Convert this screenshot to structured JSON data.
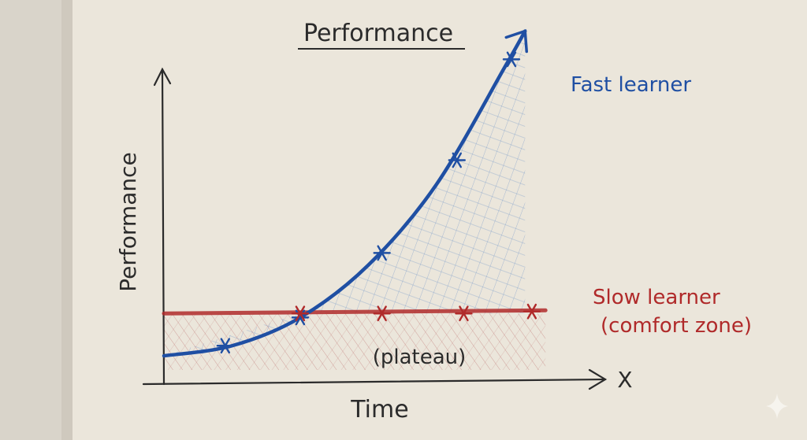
{
  "chart_data": {
    "type": "line",
    "title": "Performance",
    "xlabel": "Time",
    "ylabel": "Performance",
    "x_axis_end_label": "X",
    "annotations": {
      "plateau": "(plateau)"
    },
    "x": [
      0,
      1,
      2,
      3,
      4,
      5,
      6
    ],
    "xlim": [
      0,
      6.5
    ],
    "ylim": [
      0,
      8
    ],
    "grid": false,
    "series": [
      {
        "name": "Fast learner",
        "color": "#1f4fa3",
        "points": [
          [
            0.9,
            0.6
          ],
          [
            2.0,
            1.3
          ],
          [
            3.2,
            2.9
          ],
          [
            4.3,
            5.2
          ],
          [
            5.1,
            7.7
          ]
        ],
        "curve": [
          [
            0,
            0.35
          ],
          [
            1,
            0.6
          ],
          [
            2,
            1.3
          ],
          [
            3,
            2.6
          ],
          [
            4,
            4.6
          ],
          [
            5,
            7.5
          ],
          [
            5.3,
            8.4
          ]
        ]
      },
      {
        "name": "Slow learner",
        "subtitle": "(comfort zone)",
        "color": "#b02a2a",
        "points": [
          [
            2.0,
            1.4
          ],
          [
            3.2,
            1.4
          ],
          [
            4.4,
            1.4
          ],
          [
            5.4,
            1.45
          ]
        ],
        "curve": [
          [
            0,
            1.4
          ],
          [
            5.6,
            1.45
          ]
        ]
      }
    ],
    "colors": {
      "paper": "#ebe6db",
      "ink": "#2b2b2b",
      "fast": "#1f4fa3",
      "slow": "#b02a2a"
    }
  }
}
